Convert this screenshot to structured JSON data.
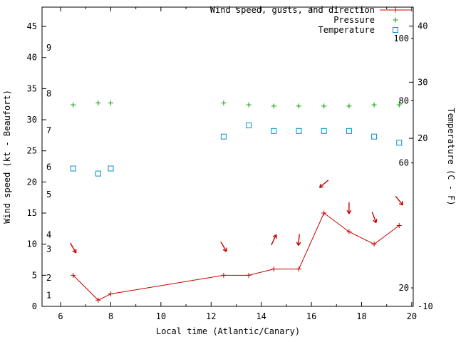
{
  "legend": {
    "wind": "Wind speed, gusts, and direction",
    "pressure": "Pressure",
    "temperature": "Temperature"
  },
  "axes": {
    "x_label": "Local time (Atlantic/Canary)",
    "y_left_label": "Wind speed (kt - Beaufort)",
    "y_right_label": "Temperature (C - F)"
  },
  "colors": {
    "wind": "#c80000",
    "pressure": "#00a000",
    "temperature": "#0090c8",
    "axis": "#000000",
    "background": "#ffffff"
  },
  "chart_data": {
    "type": "line",
    "title": "",
    "xlabel": "Local time (Atlantic/Canary)",
    "ylabel": "Wind speed (kt - Beaufort)",
    "y2label": "Temperature (C - F)",
    "legend_position": "top-right",
    "grid": false,
    "xlim": [
      5.26,
      20.06
    ],
    "ylim_kt": [
      0,
      48.1
    ],
    "ylim_C": [
      -10,
      43.4
    ],
    "x_ticks_major": [
      6,
      8,
      10,
      12,
      14,
      16,
      18,
      20
    ],
    "x_ticks_minor": [
      7,
      9,
      11,
      13,
      15,
      17,
      19
    ],
    "y_ticks_left_kt": [
      0,
      5,
      10,
      15,
      20,
      25,
      30,
      35,
      40,
      45
    ],
    "beaufort_labels": [
      {
        "label": "1",
        "kt": 1.8
      },
      {
        "label": "2",
        "kt": 4.6
      },
      {
        "label": "3",
        "kt": 9.2
      },
      {
        "label": "4",
        "kt": 11.5
      },
      {
        "label": "5",
        "kt": 18.0
      },
      {
        "label": "6",
        "kt": 22.4
      },
      {
        "label": "7",
        "kt": 28.3
      },
      {
        "label": "8",
        "kt": 34.2
      },
      {
        "label": "9",
        "kt": 41.6
      }
    ],
    "y2_ticks_C": [
      {
        "label": "40",
        "C": 40
      },
      {
        "label": "30",
        "C": 30
      },
      {
        "label": "20",
        "C": 20
      },
      {
        "label": "-10",
        "C": -10
      }
    ],
    "fahrenheit_labels": [
      {
        "label": "100",
        "C": 37.8
      },
      {
        "label": "80",
        "C": 26.7
      },
      {
        "label": "60",
        "C": 15.6
      },
      {
        "label": "20",
        "C": -6.7
      }
    ],
    "series": [
      {
        "name": "Wind speed, gusts, and direction",
        "type": "line+plus",
        "axis": "kt",
        "x": [
          6.5,
          7.5,
          8.0,
          12.5,
          13.5,
          14.5,
          15.5,
          16.5,
          17.5,
          18.5,
          19.5
        ],
        "y": [
          5,
          1,
          2,
          5,
          5,
          6,
          6,
          15,
          12,
          10,
          13
        ]
      },
      {
        "name": "Pressure",
        "type": "plus",
        "axis": "kt",
        "x": [
          6.5,
          7.5,
          8.0,
          12.5,
          13.5,
          14.5,
          15.5,
          16.5,
          17.5,
          18.5,
          19.5
        ],
        "y": [
          32.4,
          32.7,
          32.7,
          32.7,
          32.4,
          32.2,
          32.2,
          32.2,
          32.2,
          32.4,
          32.4
        ]
      },
      {
        "name": "Temperature",
        "type": "open-square",
        "axis": "C",
        "x": [
          6.5,
          7.5,
          8.0,
          12.5,
          13.5,
          14.5,
          15.5,
          16.5,
          17.5,
          18.5,
          19.5
        ],
        "y": [
          14.6,
          13.7,
          14.6,
          20.3,
          22.3,
          21.3,
          21.3,
          21.3,
          21.3,
          20.3,
          19.2
        ]
      }
    ],
    "wind_direction_arrows": [
      {
        "x": 6.5,
        "kt": 9.4,
        "dir_deg": 150
      },
      {
        "x": 12.5,
        "kt": 9.6,
        "dir_deg": 150
      },
      {
        "x": 14.5,
        "kt": 10.7,
        "dir_deg": 25
      },
      {
        "x": 15.5,
        "kt": 10.7,
        "dir_deg": 185
      },
      {
        "x": 16.5,
        "kt": 19.7,
        "dir_deg": 230
      },
      {
        "x": 17.5,
        "kt": 15.8,
        "dir_deg": 180
      },
      {
        "x": 18.5,
        "kt": 14.3,
        "dir_deg": 160
      },
      {
        "x": 19.5,
        "kt": 17.0,
        "dir_deg": 140
      }
    ]
  }
}
